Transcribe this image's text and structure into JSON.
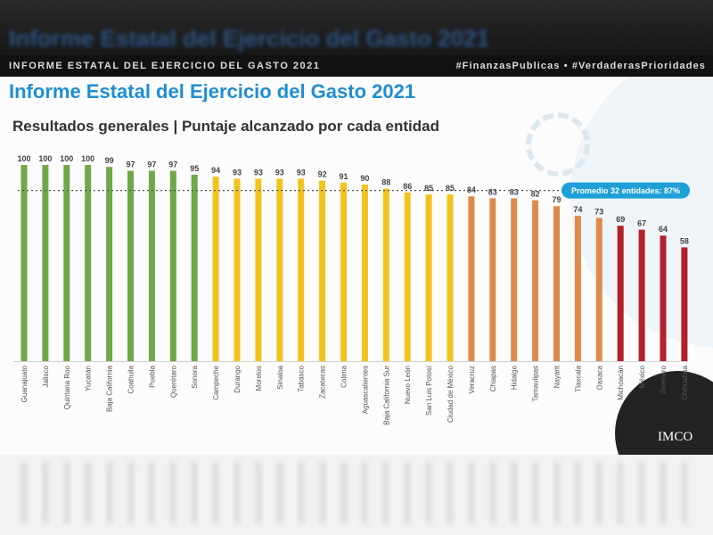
{
  "blurred_header": {
    "title": "Informe Estatal del Ejercicio del Gasto 2021"
  },
  "header": {
    "left": "INFORME ESTATAL DEL EJERCICIO DEL GASTO 2021",
    "right": "#FinanzasPublicas • #VerdaderasPrioridades"
  },
  "slide": {
    "title": "Informe Estatal del Ejercicio del Gasto 2021",
    "subtitle": "Resultados generales | Puntaje alcanzado por cada entidad",
    "logo": "IMCO"
  },
  "chart_data": {
    "type": "bar",
    "title": "Resultados generales | Puntaje alcanzado por cada entidad",
    "xlabel": "",
    "ylabel": "",
    "ylim": [
      0,
      100
    ],
    "grid": false,
    "categories": [
      "Guanajuato",
      "Jalisco",
      "Quintana Roo",
      "Yucatán",
      "Baja California",
      "Coahuila",
      "Puebla",
      "Querétaro",
      "Sonora",
      "Campeche",
      "Durango",
      "Morelos",
      "Sinaloa",
      "Tabasco",
      "Zacatecas",
      "Colima",
      "Aguascalientes",
      "Baja California Sur",
      "Nuevo León",
      "San Luis Potosí",
      "Ciudad de México",
      "Veracruz",
      "Chiapas",
      "Hidalgo",
      "Tamaulipas",
      "Nayarit",
      "Tlaxcala",
      "Oaxaca",
      "Michoacán",
      "México",
      "Guerrero",
      "Chihuahua"
    ],
    "values": [
      100,
      100,
      100,
      100,
      99,
      97,
      97,
      97,
      95,
      94,
      93,
      93,
      93,
      93,
      92,
      91,
      90,
      88,
      86,
      85,
      85,
      84,
      83,
      83,
      82,
      79,
      74,
      73,
      69,
      67,
      64,
      58
    ],
    "colors": [
      "#6fa84a",
      "#6fa84a",
      "#6fa84a",
      "#6fa84a",
      "#6fa84a",
      "#6fa84a",
      "#6fa84a",
      "#6fa84a",
      "#6fa84a",
      "#f2c31c",
      "#f2c31c",
      "#f2c31c",
      "#f2c31c",
      "#f2c31c",
      "#f2c31c",
      "#f2c31c",
      "#f2c31c",
      "#f2c31c",
      "#f2c31c",
      "#f2c31c",
      "#f2c31c",
      "#e08a4a",
      "#e08a4a",
      "#e08a4a",
      "#e08a4a",
      "#e08a4a",
      "#e08a4a",
      "#e08a4a",
      "#b3202a",
      "#b3202a",
      "#b3202a",
      "#b3202a"
    ],
    "average": {
      "value": 87,
      "label": "Promedio 32 entidades: 87%",
      "color": "#1f9fd8"
    }
  }
}
